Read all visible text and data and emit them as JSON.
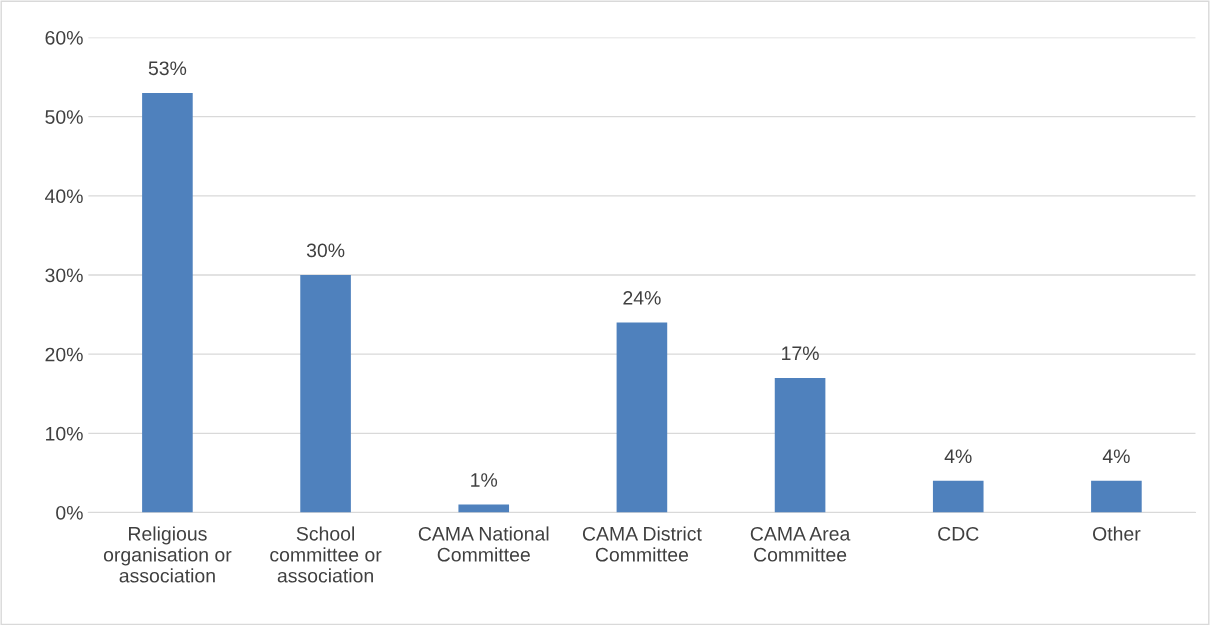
{
  "chart_data": {
    "type": "bar",
    "categories": [
      "Religious\norganisation or\nassociation",
      "School\ncommittee or\nassociation",
      "CAMA National\nCommittee",
      "CAMA District\nCommittee",
      "CAMA Area\nCommittee",
      "CDC",
      "Other"
    ],
    "values": [
      53,
      30,
      1,
      24,
      17,
      4,
      4
    ],
    "color": "#4f81bd",
    "data_labels": true,
    "value_labels": [
      "53%",
      "30%",
      "1%",
      "24%",
      "17%",
      "4%",
      "4%"
    ],
    "ylim": [
      0,
      60
    ],
    "yticks": [
      {
        "value": 0,
        "label": "0%"
      },
      {
        "value": 10,
        "label": "10%"
      },
      {
        "value": 20,
        "label": "20%"
      },
      {
        "value": 30,
        "label": "30%"
      },
      {
        "value": 40,
        "label": "40%"
      },
      {
        "value": 50,
        "label": "50%"
      },
      {
        "value": 60,
        "label": "60%"
      }
    ],
    "grid": "y"
  }
}
